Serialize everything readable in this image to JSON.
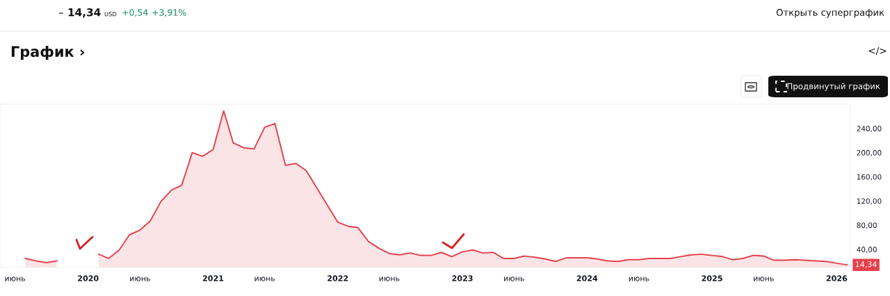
{
  "chart_data": {
    "type": "area",
    "title": "График ›",
    "x": [
      "2019-07",
      "2019-08",
      "2019-09",
      "2019-10",
      "2019-11",
      "2019-12",
      "2020-01",
      "2020-02",
      "2020-03",
      "2020-04",
      "2020-05",
      "2020-06",
      "2020-07",
      "2020-08",
      "2020-09",
      "2020-10",
      "2020-11",
      "2020-12",
      "2021-01",
      "2021-02",
      "2021-03",
      "2021-04",
      "2021-05",
      "2021-06",
      "2021-07",
      "2021-08",
      "2021-09",
      "2021-10",
      "2022-01",
      "2022-02",
      "2022-03",
      "2022-04",
      "2022-05",
      "2022-06",
      "2022-07",
      "2022-08",
      "2022-09",
      "2022-10",
      "2022-11",
      "2022-12",
      "2023-01",
      "2023-02",
      "2023-03",
      "2023-04",
      "2023-05",
      "2023-06",
      "2023-07",
      "2023-08",
      "2023-09",
      "2023-10",
      "2023-11",
      "2023-12",
      "2024-01",
      "2024-02",
      "2024-03",
      "2024-04",
      "2024-05",
      "2024-06",
      "2024-07",
      "2024-08",
      "2024-09",
      "2024-10",
      "2024-11",
      "2024-12",
      "2025-01",
      "2025-02",
      "2025-03",
      "2025-04",
      "2025-05",
      "2025-06",
      "2025-07",
      "2025-08",
      "2025-09",
      "2025-10",
      "2025-11",
      "2025-12",
      "2026-01",
      "2026-02"
    ],
    "series": [
      {
        "color": "#e5414b",
        "values": [
          25,
          21,
          18,
          21,
          null,
          null,
          null,
          32,
          25,
          39,
          64,
          72,
          87,
          119,
          138,
          146,
          200,
          194,
          205,
          269,
          216,
          208,
          206,
          242,
          248,
          179,
          182,
          170,
          85,
          78,
          76,
          53,
          42,
          33,
          31,
          34,
          30,
          30,
          35,
          28,
          36,
          39,
          34,
          35,
          25,
          25,
          29,
          27,
          24,
          20,
          26,
          26,
          26,
          24,
          21,
          20,
          23,
          23,
          25,
          25,
          25,
          28,
          31,
          32,
          30,
          28,
          23,
          25,
          30,
          29,
          22,
          22,
          23,
          22,
          21,
          20,
          17,
          14.34
        ]
      }
    ],
    "xlim": [
      "2019-04-18",
      "2026-02-08"
    ],
    "ylim": [
      10,
      280
    ],
    "xticks": [
      {
        "value": "2019-06",
        "label": "июнь"
      },
      {
        "value": "2020",
        "label": "2020"
      },
      {
        "value": "2020-06",
        "label": "июнь"
      },
      {
        "value": "2021",
        "label": "2021"
      },
      {
        "value": "2021-06",
        "label": "июнь"
      },
      {
        "value": "2022",
        "label": "2022"
      },
      {
        "value": "2022-06",
        "label": "июнь"
      },
      {
        "value": "2023",
        "label": "2023"
      },
      {
        "value": "2023-06",
        "label": "июнь"
      },
      {
        "value": "2024",
        "label": "2024"
      },
      {
        "value": "2024-06",
        "label": "июнь"
      },
      {
        "value": "2025",
        "label": "2025"
      },
      {
        "value": "2025-06",
        "label": "июнь"
      },
      {
        "value": "2026",
        "label": "2026"
      }
    ],
    "yticks": [
      {
        "value": 40,
        "label": "40,00"
      },
      {
        "value": 80,
        "label": "80,00"
      },
      {
        "value": 120,
        "label": "120,00"
      },
      {
        "value": 160,
        "label": "160,00"
      },
      {
        "value": 200,
        "label": "200,00"
      },
      {
        "value": 240,
        "label": "240,00"
      }
    ],
    "annotations": [
      "–",
      "14,34",
      "USD",
      "+0,54",
      "+3,91%",
      "</>",
      "Открыть суперграфик",
      "Продвинутый график",
      {
        "text": "14,34",
        "x": "2026-02",
        "y": 14.34
      }
    ]
  }
}
